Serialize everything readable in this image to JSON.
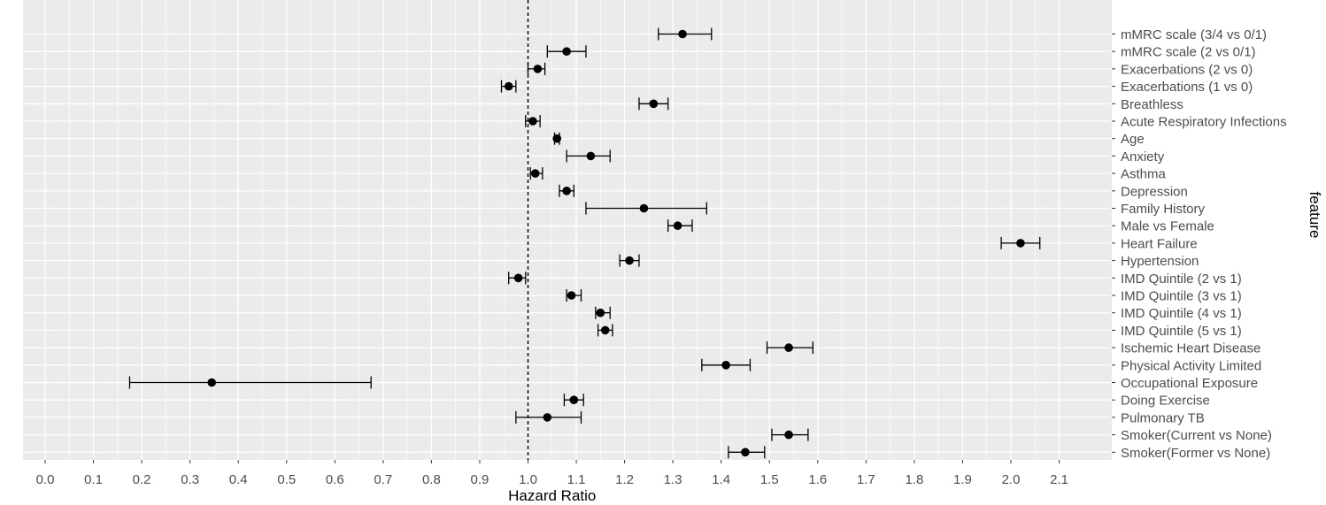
{
  "chart_data": {
    "type": "scatter",
    "subtype": "forest-plot",
    "xlabel": "Hazard Ratio",
    "ylabel": "feature",
    "xlim": [
      0.0,
      2.1
    ],
    "xticks": [
      "0.0",
      "0.1",
      "0.2",
      "0.3",
      "0.4",
      "0.5",
      "0.6",
      "0.7",
      "0.8",
      "0.9",
      "1.0",
      "1.1",
      "1.2",
      "1.3",
      "1.4",
      "1.5",
      "1.6",
      "1.7",
      "1.8",
      "1.9",
      "2.0",
      "2.1"
    ],
    "reference_line": 1.0,
    "reference_line_style": "dashed",
    "grid": true,
    "panel_background": "#ebebeb",
    "grid_color": "#ffffff",
    "point_color": "#000000",
    "features": [
      {
        "label": "mMRC scale (3/4 vs 0/1)",
        "hr": 1.32,
        "lower": 1.27,
        "upper": 1.38
      },
      {
        "label": "mMRC scale (2 vs 0/1)",
        "hr": 1.08,
        "lower": 1.04,
        "upper": 1.12
      },
      {
        "label": "Exacerbations (2 vs 0)",
        "hr": 1.02,
        "lower": 1.0,
        "upper": 1.035
      },
      {
        "label": "Exacerbations (1 vs 0)",
        "hr": 0.96,
        "lower": 0.945,
        "upper": 0.975
      },
      {
        "label": "Breathless",
        "hr": 1.26,
        "lower": 1.23,
        "upper": 1.29
      },
      {
        "label": "Acute Respiratory Infections",
        "hr": 1.01,
        "lower": 0.995,
        "upper": 1.025
      },
      {
        "label": "Age",
        "hr": 1.06,
        "lower": 1.055,
        "upper": 1.065
      },
      {
        "label": "Anxiety",
        "hr": 1.13,
        "lower": 1.08,
        "upper": 1.17
      },
      {
        "label": "Asthma",
        "hr": 1.015,
        "lower": 1.005,
        "upper": 1.03
      },
      {
        "label": "Depression",
        "hr": 1.08,
        "lower": 1.065,
        "upper": 1.095
      },
      {
        "label": "Family History",
        "hr": 1.24,
        "lower": 1.12,
        "upper": 1.37
      },
      {
        "label": "Male vs Female",
        "hr": 1.31,
        "lower": 1.29,
        "upper": 1.34
      },
      {
        "label": "Heart Failure",
        "hr": 2.02,
        "lower": 1.98,
        "upper": 2.06
      },
      {
        "label": "Hypertension",
        "hr": 1.21,
        "lower": 1.19,
        "upper": 1.23
      },
      {
        "label": "IMD Quintile (2 vs 1)",
        "hr": 0.98,
        "lower": 0.96,
        "upper": 0.995
      },
      {
        "label": "IMD Quintile (3 vs 1)",
        "hr": 1.09,
        "lower": 1.08,
        "upper": 1.11
      },
      {
        "label": "IMD Quintile (4 vs 1)",
        "hr": 1.15,
        "lower": 1.14,
        "upper": 1.17
      },
      {
        "label": "IMD Quintile (5 vs 1)",
        "hr": 1.16,
        "lower": 1.145,
        "upper": 1.175
      },
      {
        "label": "Ischemic Heart Disease",
        "hr": 1.54,
        "lower": 1.495,
        "upper": 1.59
      },
      {
        "label": "Physical Activity Limited",
        "hr": 1.41,
        "lower": 1.36,
        "upper": 1.46
      },
      {
        "label": "Occupational Exposure",
        "hr": 0.345,
        "lower": 0.175,
        "upper": 0.675
      },
      {
        "label": "Doing Exercise",
        "hr": 1.095,
        "lower": 1.075,
        "upper": 1.115
      },
      {
        "label": "Pulmonary TB",
        "hr": 1.04,
        "lower": 0.975,
        "upper": 1.11
      },
      {
        "label": "Smoker(Current vs None)",
        "hr": 1.54,
        "lower": 1.505,
        "upper": 1.58
      },
      {
        "label": "Smoker(Former vs None)",
        "hr": 1.45,
        "lower": 1.415,
        "upper": 1.49
      }
    ]
  }
}
